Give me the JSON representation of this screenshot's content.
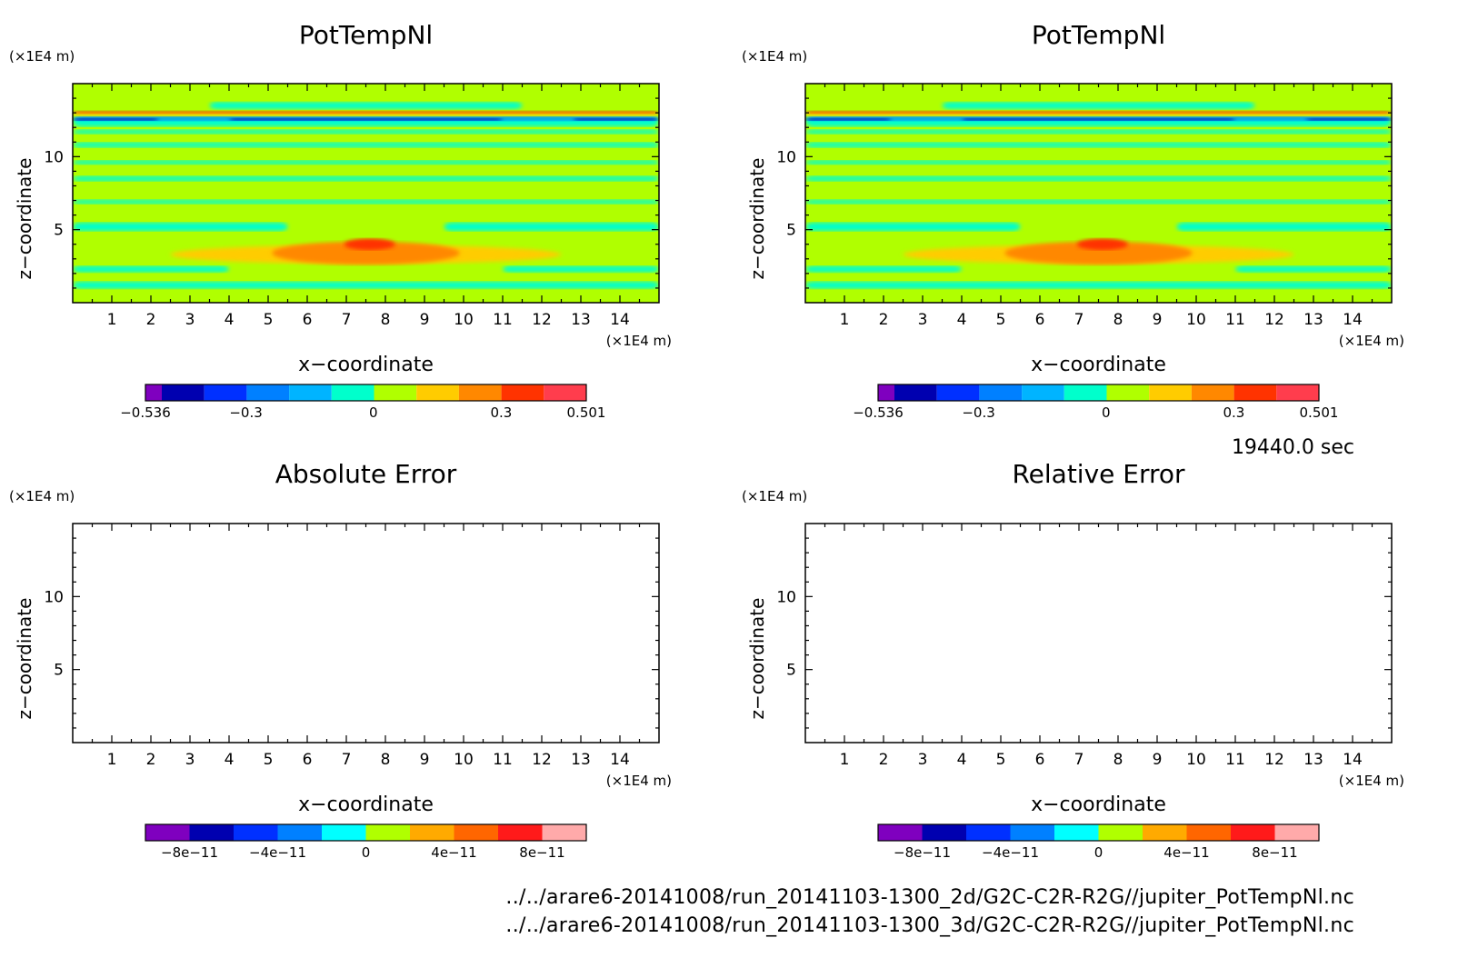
{
  "time_label": "19440.0 sec",
  "files": [
    "../../arare6-20141008/run_20141103-1300_2d/G2C-C2R-R2G//jupiter_PotTempNl.nc",
    "../../arare6-20141008/run_20141103-1300_3d/G2C-C2R-R2G//jupiter_PotTempNl.nc"
  ],
  "colors": {
    "pot": [
      "#7f00bf",
      "#0000b0",
      "#0030ff",
      "#0080ff",
      "#00b4ff",
      "#00ffcc",
      "#b0ff00",
      "#ffcc00",
      "#ff8800",
      "#ff3300",
      "#ff3d4d"
    ],
    "err": [
      "#7f00bf",
      "#0000b0",
      "#0030ff",
      "#0080ff",
      "#00ffff",
      "#b0ff00",
      "#ffaa00",
      "#ff6600",
      "#ff1a1a",
      "#ffaaaa"
    ]
  },
  "chart_data": [
    {
      "id": "pot1",
      "type": "heatmap",
      "title": "PotTempNl",
      "xlabel": "x−coordinate",
      "ylabel": "z−coordinate",
      "xunit": "(×1E4 m)",
      "yunit": "(×1E4 m)",
      "xlim": [
        0,
        15
      ],
      "ylim": [
        0,
        15
      ],
      "xticks": [
        "1",
        "2",
        "3",
        "4",
        "5",
        "6",
        "7",
        "8",
        "9",
        "10",
        "11",
        "12",
        "13",
        "14"
      ],
      "yticks": [
        "5",
        "10"
      ],
      "filled": true,
      "colorbar_ticks": [
        "−0.536",
        "−0.3",
        "0",
        "0.3",
        "0.501"
      ],
      "colorbar_range": [
        -0.536,
        0.501
      ]
    },
    {
      "id": "pot2",
      "type": "heatmap",
      "title": "PotTempNl",
      "xlabel": "x−coordinate",
      "ylabel": "z−coordinate",
      "xunit": "(×1E4 m)",
      "yunit": "(×1E4 m)",
      "xlim": [
        0,
        15
      ],
      "ylim": [
        0,
        15
      ],
      "xticks": [
        "1",
        "2",
        "3",
        "4",
        "5",
        "6",
        "7",
        "8",
        "9",
        "10",
        "11",
        "12",
        "13",
        "14"
      ],
      "yticks": [
        "5",
        "10"
      ],
      "filled": true,
      "colorbar_ticks": [
        "−0.536",
        "−0.3",
        "0",
        "0.3",
        "0.501"
      ],
      "colorbar_range": [
        -0.536,
        0.501
      ]
    },
    {
      "id": "abserr",
      "type": "heatmap",
      "title": "Absolute Error",
      "xlabel": "x−coordinate",
      "ylabel": "z−coordinate",
      "xunit": "(×1E4 m)",
      "yunit": "(×1E4 m)",
      "xlim": [
        0,
        15
      ],
      "ylim": [
        0,
        15
      ],
      "xticks": [
        "1",
        "2",
        "3",
        "4",
        "5",
        "6",
        "7",
        "8",
        "9",
        "10",
        "11",
        "12",
        "13",
        "14"
      ],
      "yticks": [
        "5",
        "10"
      ],
      "filled": false,
      "colorbar_ticks": [
        "−8e−11",
        "−4e−11",
        "0",
        "4e−11",
        "8e−11"
      ],
      "colorbar_range": [
        -1e-10,
        1e-10
      ]
    },
    {
      "id": "relerr",
      "type": "heatmap",
      "title": "Relative Error",
      "xlabel": "x−coordinate",
      "ylabel": "z−coordinate",
      "xunit": "(×1E4 m)",
      "yunit": "(×1E4 m)",
      "xlim": [
        0,
        15
      ],
      "ylim": [
        0,
        15
      ],
      "xticks": [
        "1",
        "2",
        "3",
        "4",
        "5",
        "6",
        "7",
        "8",
        "9",
        "10",
        "11",
        "12",
        "13",
        "14"
      ],
      "yticks": [
        "5",
        "10"
      ],
      "filled": false,
      "colorbar_ticks": [
        "−8e−11",
        "−4e−11",
        "0",
        "4e−11",
        "8e−11"
      ],
      "colorbar_range": [
        -1e-10,
        1e-10
      ]
    }
  ]
}
